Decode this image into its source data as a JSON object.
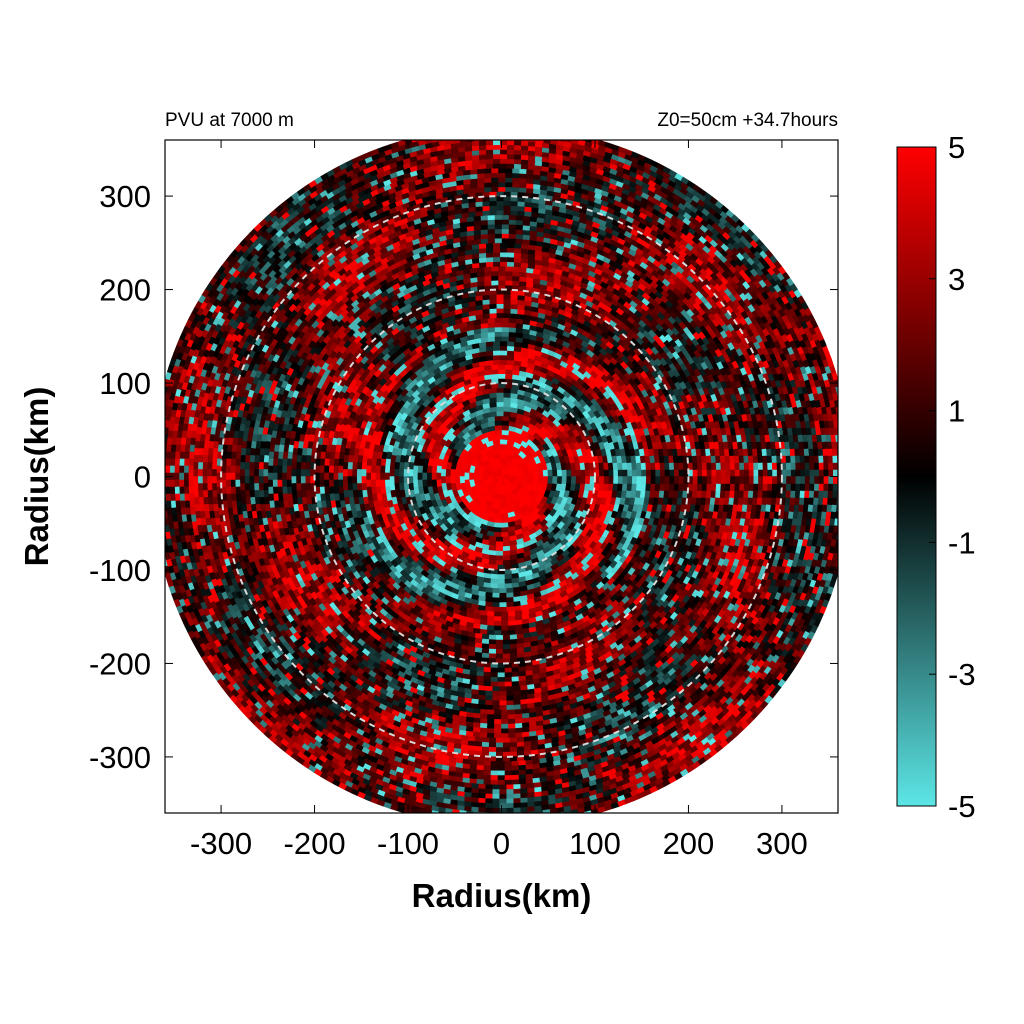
{
  "chart_data": {
    "type": "heatmap",
    "title_left": "PVU at  7000 m",
    "title_right": "Z0=50cm  +34.7hours",
    "xlabel": "Radius(km)",
    "ylabel": "Radius(km)",
    "xlim": [
      -360,
      360
    ],
    "ylim": [
      -360,
      360
    ],
    "x_ticks": [
      -300,
      -200,
      -100,
      0,
      100,
      200,
      300
    ],
    "y_ticks": [
      300,
      200,
      100,
      0,
      -100,
      -200,
      -300
    ],
    "x_tick_labels": [
      "-300",
      "-200",
      "-100",
      "0",
      "100",
      "200",
      "300"
    ],
    "y_tick_labels": [
      "300",
      "200",
      "100",
      "0",
      "-100",
      "-200",
      "-300"
    ],
    "domain_radius_km": 375,
    "reference_circles_km": [
      100,
      200,
      300
    ],
    "colorbar": {
      "min": -5,
      "max": 5,
      "ticks": [
        5,
        3,
        1,
        -1,
        -3,
        -5
      ],
      "tick_labels": [
        "5",
        "3",
        "1",
        "-1",
        "-3",
        "-5"
      ],
      "colors": [
        {
          "value": -5,
          "color": "#5ce6e6"
        },
        {
          "value": 0,
          "color": "#000000"
        },
        {
          "value": 5,
          "color": "#ff0000"
        }
      ]
    },
    "grid": false,
    "legend": "colorbar-right"
  }
}
